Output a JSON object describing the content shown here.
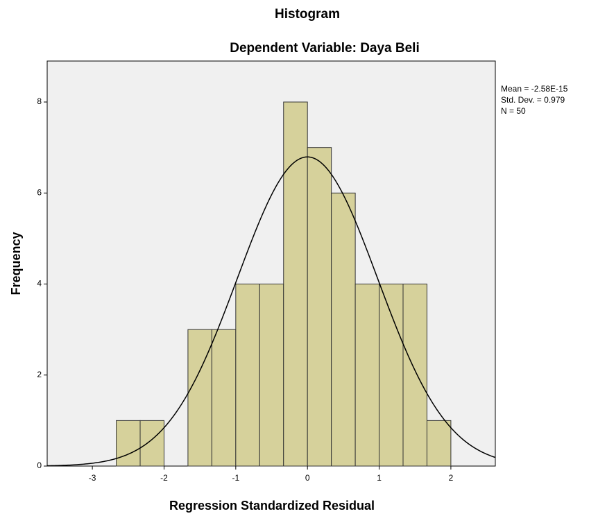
{
  "chart_data": {
    "type": "histogram",
    "title": "Histogram",
    "subtitle": "Dependent Variable: Daya Beli",
    "xlabel": "Regression Standardized Residual",
    "ylabel": "Frequency",
    "bins": [
      -2.6667,
      -2.3333,
      -2.0,
      -1.6667,
      -1.3333,
      -1.0,
      -0.6667,
      -0.3333,
      0,
      0.3333,
      0.6667,
      1.0,
      1.3333,
      1.6667,
      2.0
    ],
    "values": [
      1,
      1,
      0,
      3,
      3,
      4,
      4,
      8,
      7,
      6,
      4,
      4,
      4,
      1
    ],
    "color": "#d6d19b",
    "xlim": [
      -3.63,
      2.62
    ],
    "xticks": [
      -3,
      -2,
      -1,
      0,
      1,
      2
    ],
    "ylim": [
      0,
      8.9
    ],
    "yticks": [
      0,
      2,
      4,
      6,
      8
    ],
    "stats": [
      {
        "value": -2.58e-15,
        "label": "Mean = -2.58E-15"
      },
      {
        "value": 0.979,
        "label": "Std. Dev. = 0.979"
      },
      {
        "value": 50,
        "label": "N = 50"
      }
    ]
  }
}
